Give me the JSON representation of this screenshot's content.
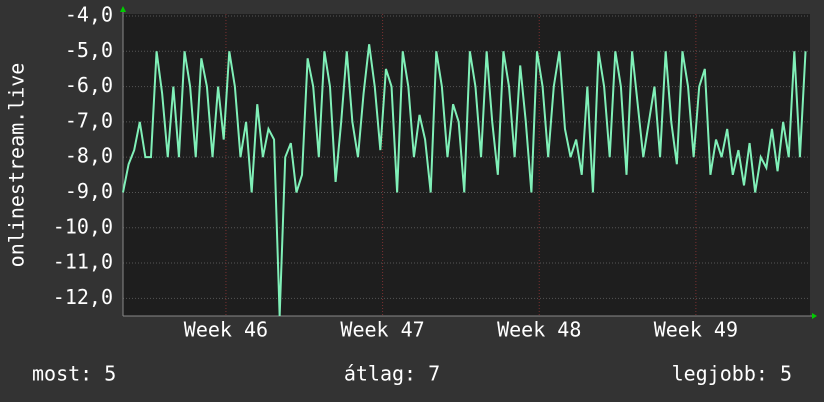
{
  "chart_data": {
    "type": "line",
    "y_label": "onlinestream.live",
    "footer": {
      "current": "most: 5",
      "average": "átlag: 7",
      "best": "legjobb: 5"
    },
    "xlim": [
      0,
      30.7
    ],
    "ylim": [
      -12.5,
      -4.0
    ],
    "xticks": [
      {
        "value": 4.6,
        "label": "Week 46"
      },
      {
        "value": 11.6,
        "label": "Week 47"
      },
      {
        "value": 18.6,
        "label": "Week 48"
      },
      {
        "value": 25.6,
        "label": "Week 49"
      }
    ],
    "yticks": [
      {
        "value": -4,
        "label": "-4,0"
      },
      {
        "value": -5,
        "label": "-5,0"
      },
      {
        "value": -6,
        "label": "-6,0"
      },
      {
        "value": -7,
        "label": "-7,0"
      },
      {
        "value": -8,
        "label": "-8,0"
      },
      {
        "value": -9,
        "label": "-9,0"
      },
      {
        "value": -10,
        "label": "-10,0"
      },
      {
        "value": -11,
        "label": "-11,0"
      },
      {
        "value": -12,
        "label": "-12,0"
      }
    ],
    "grid": true,
    "x": [
      0,
      0.25,
      0.5,
      0.75,
      1,
      1.25,
      1.5,
      1.75,
      2,
      2.25,
      2.5,
      2.75,
      3,
      3.25,
      3.5,
      3.75,
      4,
      4.25,
      4.5,
      4.75,
      5,
      5.25,
      5.5,
      5.75,
      6,
      6.25,
      6.5,
      6.75,
      7,
      7.25,
      7.5,
      7.75,
      8,
      8.25,
      8.5,
      8.75,
      9,
      9.25,
      9.5,
      9.75,
      10,
      10.25,
      10.5,
      10.75,
      11,
      11.25,
      11.5,
      11.75,
      12,
      12.25,
      12.5,
      12.75,
      13,
      13.25,
      13.5,
      13.75,
      14,
      14.25,
      14.5,
      14.75,
      15,
      15.25,
      15.5,
      15.75,
      16,
      16.25,
      16.5,
      16.75,
      17,
      17.25,
      17.5,
      17.75,
      18,
      18.25,
      18.5,
      18.75,
      19,
      19.25,
      19.5,
      19.75,
      20,
      20.25,
      20.5,
      20.75,
      21,
      21.25,
      21.5,
      21.75,
      22,
      22.25,
      22.5,
      22.75,
      23,
      23.25,
      23.5,
      23.75,
      24,
      24.25,
      24.5,
      24.75,
      25,
      25.25,
      25.5,
      25.75,
      26,
      26.25,
      26.5,
      26.75,
      27,
      27.25,
      27.5,
      27.75,
      28,
      28.25,
      28.5,
      28.75,
      29,
      29.25,
      29.5,
      29.75,
      30,
      30.25,
      30.5
    ],
    "series": [
      {
        "name": "onlinestream.live",
        "color": "#80f0b8",
        "values": [
          -9,
          -8.2,
          -7.8,
          -7,
          -8,
          -8,
          -5,
          -6.2,
          -8,
          -6,
          -8,
          -5,
          -6,
          -8,
          -5.2,
          -6,
          -8,
          -6,
          -7.5,
          -5,
          -6,
          -8,
          -7,
          -9,
          -6.5,
          -8,
          -7.2,
          -7.5,
          -12.5,
          -8,
          -7.6,
          -9,
          -8.5,
          -5.2,
          -6,
          -8,
          -5,
          -6,
          -8.7,
          -7,
          -5,
          -7,
          -8,
          -6.2,
          -4.8,
          -6,
          -7.8,
          -5.5,
          -6,
          -9,
          -5,
          -6,
          -8,
          -6.8,
          -7.5,
          -9,
          -5,
          -6,
          -8,
          -6.5,
          -7,
          -9,
          -5,
          -6,
          -8,
          -5,
          -7,
          -8.5,
          -5,
          -6,
          -8,
          -5.4,
          -7,
          -9,
          -5,
          -6,
          -8,
          -6,
          -5,
          -7.2,
          -8,
          -7.5,
          -8.5,
          -6,
          -9,
          -5,
          -6,
          -8,
          -5,
          -6,
          -8.5,
          -5,
          -6.5,
          -8,
          -7,
          -6,
          -8,
          -5,
          -7,
          -8.2,
          -5,
          -6,
          -8,
          -6,
          -5.5,
          -8.5,
          -7.5,
          -8,
          -7.2,
          -8.5,
          -7.8,
          -8.8,
          -7.6,
          -9,
          -8,
          -8.3,
          -7.2,
          -8.4,
          -7,
          -8,
          -5,
          -8,
          -5
        ]
      }
    ]
  }
}
